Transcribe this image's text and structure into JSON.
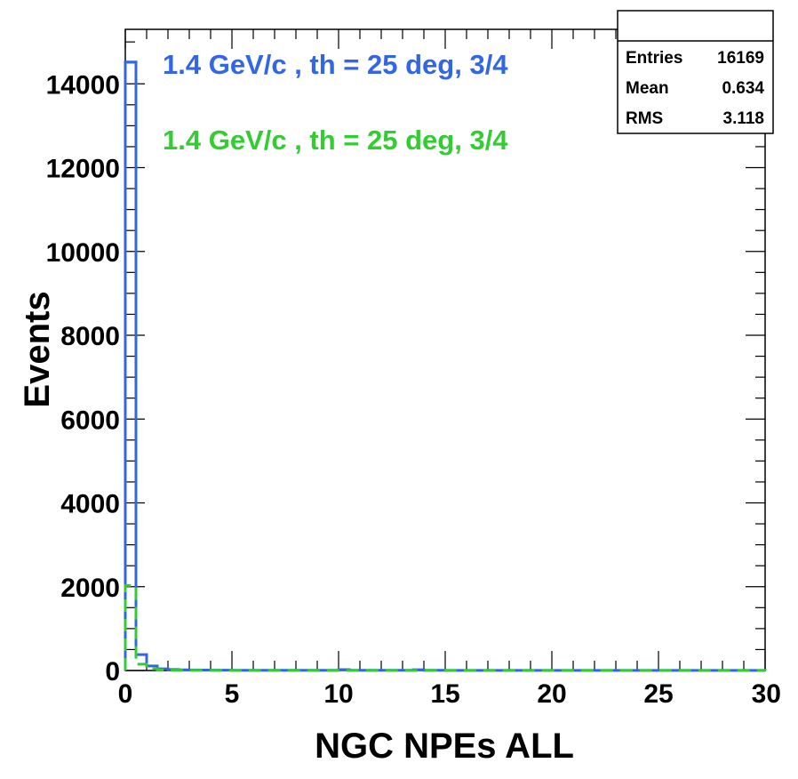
{
  "chart_data": {
    "type": "histogram",
    "xlabel": "NGC NPEs ALL",
    "ylabel": "Events",
    "xlim": [
      0,
      30
    ],
    "ylim": [
      0,
      15300
    ],
    "x_ticks": [
      "0",
      "5",
      "10",
      "15",
      "20",
      "25",
      "30"
    ],
    "y_ticks": [
      "0",
      "2000",
      "4000",
      "6000",
      "8000",
      "10000",
      "12000",
      "14000"
    ],
    "bin_width": 0.5,
    "series": [
      {
        "name": "1.4 GeV/c , th = 25 deg, 3/4",
        "color": "#3366e6",
        "line_style": "solid",
        "values": [
          14520,
          380,
          110,
          40,
          25,
          15,
          12,
          10,
          8,
          8,
          6,
          6,
          5,
          5,
          5,
          4,
          4,
          4,
          4,
          4,
          20,
          6,
          5,
          4,
          4,
          4,
          5,
          18,
          4,
          4,
          3,
          3,
          3,
          3,
          3,
          3,
          3,
          3,
          3,
          3,
          3,
          3,
          3,
          3,
          3,
          3,
          3,
          3,
          3,
          3,
          3,
          3,
          3,
          3,
          3,
          3,
          3,
          3,
          3,
          3
        ]
      },
      {
        "name": "1.4 GeV/c , th = 25 deg, 3/4",
        "color": "#33cc33",
        "line_style": "dashed",
        "values": [
          2030,
          150,
          40,
          15,
          8,
          5,
          4,
          3,
          3,
          3,
          2,
          2,
          2,
          2,
          2,
          2,
          2,
          2,
          2,
          2,
          2,
          2,
          2,
          2,
          2,
          2,
          2,
          2,
          2,
          2,
          2,
          2,
          2,
          2,
          2,
          2,
          2,
          2,
          2,
          2,
          2,
          2,
          2,
          2,
          2,
          2,
          2,
          2,
          2,
          2,
          2,
          2,
          2,
          2,
          2,
          2,
          2,
          2,
          2,
          2
        ]
      }
    ],
    "stats_box": {
      "rows": [
        {
          "label": "Entries",
          "value": "16169"
        },
        {
          "label": "Mean",
          "value": "0.634"
        },
        {
          "label": "RMS",
          "value": "3.118"
        }
      ]
    }
  }
}
